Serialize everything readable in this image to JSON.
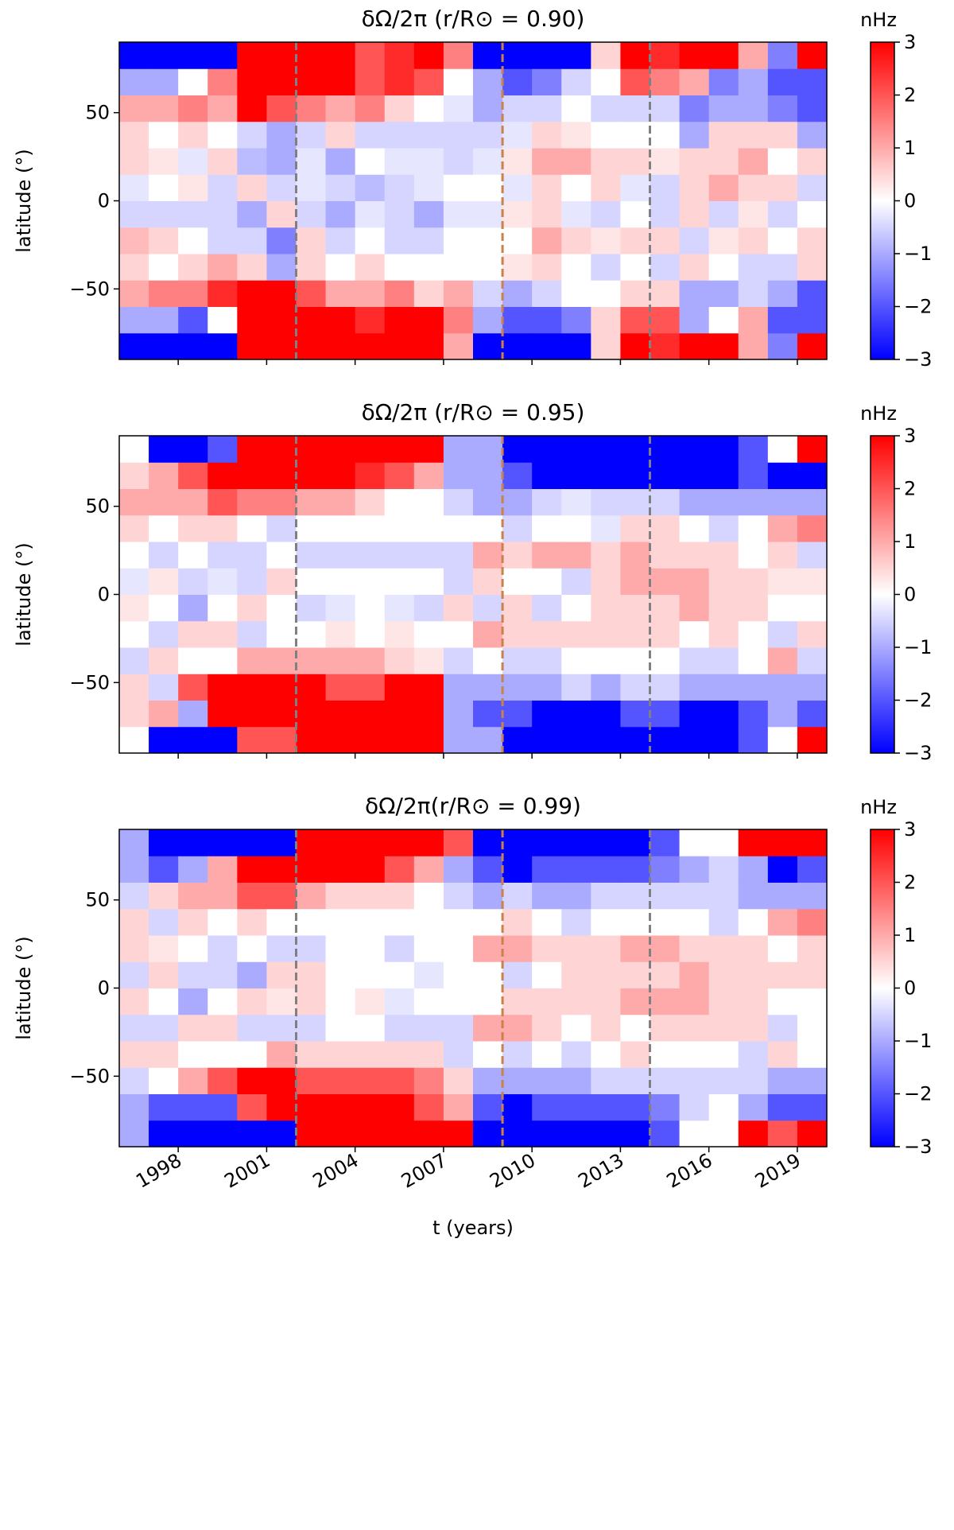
{
  "chart_data": [
    {
      "type": "heatmap",
      "title": "δΩ/2π (r/R⊙ = 0.90)",
      "ylabel": "latitude (°)",
      "colorbar_label": "nHz",
      "cmap": "bwr",
      "clim": [
        -3,
        3
      ],
      "cticks": [
        {
          "value": -3,
          "label": "−3"
        },
        {
          "value": -2,
          "label": "−2"
        },
        {
          "value": -1,
          "label": "−1"
        },
        0,
        1,
        2,
        3
      ],
      "xbins": [
        1996,
        1997,
        1998,
        1999,
        2000,
        2001,
        2002,
        2003,
        2004,
        2005,
        2006,
        2007,
        2008,
        2009,
        2010,
        2011,
        2012,
        2013,
        2014,
        2015,
        2016,
        2017,
        2018,
        2019,
        2020
      ],
      "ybins": [
        -90,
        -75,
        -60,
        -45,
        -30,
        -15,
        0,
        15,
        30,
        45,
        60,
        75,
        90
      ],
      "xlim": [
        1996,
        2020
      ],
      "ylim": [
        -90,
        90
      ],
      "xticks": [
        1998,
        2001,
        2004,
        2007,
        2010,
        2013,
        2016,
        2019
      ],
      "show_xtick_labels": false,
      "yticks": [
        {
          "value": -50,
          "label": "−50"
        },
        0,
        50
      ],
      "vlines": [
        {
          "x": 2002,
          "color": "#808080"
        },
        {
          "x": 2009,
          "color": "#c8824a"
        },
        {
          "x": 2014,
          "color": "#808080"
        }
      ],
      "values": [
        [
          -3,
          -1,
          1,
          0.5,
          0.8,
          -0.5,
          -0.3,
          0.5,
          0.5,
          1,
          -1,
          -3
        ],
        [
          -3,
          -1,
          1.5,
          0,
          0.5,
          -0.5,
          0,
          0.3,
          0,
          1,
          -1,
          -3
        ],
        [
          -3,
          -2,
          1.5,
          0.5,
          0,
          -0.5,
          0.3,
          -0.3,
          0.5,
          1.5,
          0,
          -3
        ],
        [
          -3,
          0,
          2.5,
          1,
          -0.5,
          -0.5,
          -0.5,
          0.5,
          0,
          1,
          1.5,
          -3
        ],
        [
          3,
          3,
          3,
          0.5,
          -0.5,
          -1,
          0.5,
          -0.8,
          -0.5,
          3,
          3,
          3
        ],
        [
          3,
          3,
          3,
          -1,
          -1.5,
          0.5,
          -0.5,
          -1,
          -1,
          2,
          3,
          3
        ],
        [
          3,
          3,
          2,
          0.5,
          0.5,
          -0.5,
          -0.3,
          -0.3,
          -0.5,
          1.5,
          3,
          3
        ],
        [
          3,
          3,
          1,
          0,
          -0.5,
          -1,
          -0.5,
          -1,
          0.5,
          1,
          3,
          3
        ],
        [
          3,
          2.5,
          1,
          0.5,
          0,
          -0.3,
          -0.8,
          0,
          -0.5,
          1.5,
          2,
          2
        ],
        [
          3,
          3,
          1.5,
          0,
          -0.5,
          -0.5,
          -0.5,
          -0.3,
          -0.5,
          0.5,
          2.5,
          2.5
        ],
        [
          3,
          3,
          0.5,
          0,
          -0.5,
          -1,
          -0.3,
          -0.3,
          -0.5,
          0,
          2,
          3
        ],
        [
          1,
          1.5,
          1,
          0,
          0,
          -0.3,
          0,
          -0.5,
          -0.5,
          -0.3,
          0,
          1.5
        ],
        [
          -3,
          -1,
          -0.5,
          0,
          0,
          -0.3,
          0,
          -0.3,
          -0.5,
          -1,
          -1,
          -3
        ],
        [
          -3,
          -2,
          -1,
          0.3,
          0,
          0.3,
          -0.3,
          0.3,
          -0.3,
          -0.5,
          -2,
          -3
        ],
        [
          -3,
          -2,
          -0.5,
          0.5,
          1,
          0.5,
          0.5,
          1,
          0.5,
          -0.5,
          -1.5,
          -3
        ],
        [
          -3,
          -1.5,
          0,
          0,
          0.5,
          -0.3,
          0,
          1,
          0.3,
          0,
          -0.5,
          -3
        ],
        [
          0.5,
          0.5,
          0,
          -0.5,
          0.3,
          -0.5,
          0.5,
          0.5,
          0,
          -0.5,
          0,
          0.5
        ],
        [
          3,
          2,
          0.5,
          0,
          0.5,
          0,
          -0.3,
          0.5,
          0,
          -0.5,
          2,
          3
        ],
        [
          2.5,
          2,
          0.5,
          -0.5,
          0.5,
          -0.5,
          -0.5,
          0.3,
          0,
          -0.5,
          1.5,
          2.5
        ],
        [
          3,
          -1,
          -1,
          0.5,
          -0.5,
          0.5,
          0.5,
          0.5,
          -1,
          -1.5,
          1,
          3
        ],
        [
          3,
          0,
          -1,
          0,
          0.3,
          -0.5,
          1,
          0.5,
          0.5,
          -1,
          -1.5,
          3
        ],
        [
          1,
          1,
          -0.5,
          -0.5,
          0.5,
          0.3,
          0.5,
          1,
          0.5,
          -1,
          -1,
          1
        ],
        [
          -1.5,
          -2,
          -1,
          -0.5,
          0,
          -0.5,
          0.5,
          0,
          0.5,
          -1.5,
          -2,
          -1.5
        ],
        [
          3,
          -2,
          -2,
          0.5,
          0.5,
          0,
          -0.5,
          0.5,
          -1,
          -2,
          -2,
          3
        ]
      ]
    },
    {
      "type": "heatmap",
      "title": "δΩ/2π (r/R⊙ = 0.95)",
      "ylabel": "latitude (°)",
      "colorbar_label": "nHz",
      "cmap": "bwr",
      "clim": [
        -3,
        3
      ],
      "cticks": [
        {
          "value": -3,
          "label": "−3"
        },
        {
          "value": -2,
          "label": "−2"
        },
        {
          "value": -1,
          "label": "−1"
        },
        0,
        1,
        2,
        3
      ],
      "xbins": [
        1996,
        1997,
        1998,
        1999,
        2000,
        2001,
        2002,
        2003,
        2004,
        2005,
        2006,
        2007,
        2008,
        2009,
        2010,
        2011,
        2012,
        2013,
        2014,
        2015,
        2016,
        2017,
        2018,
        2019,
        2020
      ],
      "ybins": [
        -90,
        -75,
        -60,
        -45,
        -30,
        -15,
        0,
        15,
        30,
        45,
        60,
        75,
        90
      ],
      "xlim": [
        1996,
        2020
      ],
      "ylim": [
        -90,
        90
      ],
      "xticks": [
        1998,
        2001,
        2004,
        2007,
        2010,
        2013,
        2016,
        2019
      ],
      "show_xtick_labels": false,
      "yticks": [
        {
          "value": -50,
          "label": "−50"
        },
        0,
        50
      ],
      "vlines": [
        {
          "x": 2002,
          "color": "#808080"
        },
        {
          "x": 2009,
          "color": "#c8824a"
        },
        {
          "x": 2014,
          "color": "#808080"
        }
      ],
      "values": [
        [
          0,
          0.5,
          0.5,
          -0.5,
          0,
          0.3,
          -0.3,
          0,
          0.5,
          1,
          0.5,
          0
        ],
        [
          -3,
          1,
          -0.5,
          0.5,
          -0.5,
          0,
          0.3,
          -0.5,
          0,
          1,
          1,
          -3
        ],
        [
          -3,
          -1,
          2,
          0,
          0.5,
          -1,
          -0.5,
          0,
          0.5,
          1,
          2,
          -3
        ],
        [
          -3,
          3,
          3,
          0,
          0.5,
          0,
          -0.3,
          -0.5,
          0.5,
          2,
          3,
          -2
        ],
        [
          2,
          3,
          3,
          1,
          -0.5,
          0.5,
          -0.5,
          -0.5,
          0,
          1.5,
          3,
          3
        ],
        [
          2,
          3,
          3,
          1,
          0,
          0,
          0.5,
          0,
          -0.5,
          1.5,
          3,
          3
        ],
        [
          3,
          3,
          3,
          1,
          0,
          -0.5,
          0,
          -0.5,
          0,
          1,
          3,
          3
        ],
        [
          3,
          3,
          2,
          1,
          0.3,
          -0.3,
          0,
          -0.5,
          0,
          1,
          3,
          3
        ],
        [
          3,
          3,
          2,
          1,
          0,
          0,
          0,
          -0.5,
          0,
          0.5,
          2.5,
          3
        ],
        [
          3,
          3,
          3,
          0.5,
          0.3,
          -0.3,
          0,
          -0.5,
          0,
          0,
          2,
          3
        ],
        [
          3,
          3,
          3,
          0.3,
          0,
          -0.5,
          0,
          -0.5,
          0,
          0,
          1,
          3
        ],
        [
          -1,
          -1,
          -1,
          -0.5,
          0,
          0.5,
          -0.5,
          -0.5,
          0,
          -0.5,
          -1,
          -1
        ],
        [
          -1,
          -2,
          -1,
          0,
          1,
          -0.5,
          0.5,
          1,
          0,
          -1,
          -1,
          -1
        ],
        [
          -3,
          -2,
          -1,
          -0.5,
          0.5,
          0.5,
          0,
          0.5,
          -0.5,
          -1,
          -2,
          -3
        ],
        [
          -3,
          -3,
          -1,
          -0.5,
          0.5,
          -0.5,
          0,
          1,
          0,
          -0.5,
          -3,
          -3
        ],
        [
          -3,
          -3,
          -0.5,
          0,
          0.5,
          0,
          -0.5,
          1,
          0,
          -0.3,
          -3,
          -3
        ],
        [
          -3,
          -3,
          -1,
          0,
          0.5,
          0.5,
          0.5,
          0.5,
          -0.3,
          -0.5,
          -3,
          -3
        ],
        [
          -3,
          -2,
          -0.5,
          0,
          0.5,
          0.5,
          1,
          1,
          0.5,
          -0.5,
          -3,
          -3
        ],
        [
          -3,
          -2,
          -0.5,
          0,
          0.5,
          0.5,
          1,
          0.5,
          0.5,
          -0.5,
          -3,
          -3
        ],
        [
          -3,
          -3,
          -1,
          -0.5,
          0,
          1,
          1,
          0.5,
          0,
          -1,
          -3,
          -3
        ],
        [
          -3,
          -3,
          -1,
          -0.5,
          0.5,
          0.5,
          0.5,
          0.5,
          -0.5,
          -1,
          -3,
          -3
        ],
        [
          -2,
          -2,
          -1,
          0,
          0,
          0.5,
          0.5,
          0,
          0,
          -1,
          -2,
          -2
        ],
        [
          0,
          -1,
          -1,
          1,
          -0.5,
          0,
          0.3,
          0.5,
          1,
          -1,
          -3,
          0
        ],
        [
          3,
          -2,
          -1,
          -0.5,
          0.5,
          0,
          0.3,
          -0.5,
          1.5,
          -1,
          -3,
          3
        ]
      ]
    },
    {
      "type": "heatmap",
      "title": "δΩ/2π(r/R⊙ = 0.99)",
      "ylabel": "latitude (°)",
      "xlabel": "t (years)",
      "colorbar_label": "nHz",
      "cmap": "bwr",
      "clim": [
        -3,
        3
      ],
      "cticks": [
        {
          "value": -3,
          "label": "−3"
        },
        {
          "value": -2,
          "label": "−2"
        },
        {
          "value": -1,
          "label": "−1"
        },
        0,
        1,
        2,
        3
      ],
      "xbins": [
        1996,
        1997,
        1998,
        1999,
        2000,
        2001,
        2002,
        2003,
        2004,
        2005,
        2006,
        2007,
        2008,
        2009,
        2010,
        2011,
        2012,
        2013,
        2014,
        2015,
        2016,
        2017,
        2018,
        2019,
        2020
      ],
      "ybins": [
        -90,
        -75,
        -60,
        -45,
        -30,
        -15,
        0,
        15,
        30,
        45,
        60,
        75,
        90
      ],
      "xlim": [
        1996,
        2020
      ],
      "ylim": [
        -90,
        90
      ],
      "xticks": [
        1998,
        2001,
        2004,
        2007,
        2010,
        2013,
        2016,
        2019
      ],
      "show_xtick_labels": true,
      "yticks": [
        {
          "value": -50,
          "label": "−50"
        },
        0,
        50
      ],
      "vlines": [
        {
          "x": 2002,
          "color": "#808080"
        },
        {
          "x": 2009,
          "color": "#c8824a"
        },
        {
          "x": 2014,
          "color": "#808080"
        }
      ],
      "values": [
        [
          -1,
          -1,
          -0.5,
          0.5,
          -0.5,
          0.5,
          -0.5,
          0.5,
          0.5,
          -0.5,
          -1,
          -1
        ],
        [
          -3,
          -2,
          0,
          0.5,
          -0.5,
          0,
          0.5,
          0.3,
          -0.5,
          0.5,
          -2,
          -3
        ],
        [
          -3,
          -2,
          1,
          0,
          0.5,
          -1,
          -0.5,
          0,
          0.5,
          1,
          -1,
          -3
        ],
        [
          -3,
          -2,
          2,
          0,
          0.5,
          0,
          -0.5,
          -0.5,
          0,
          1,
          1,
          -3
        ],
        [
          -3,
          2,
          3,
          0,
          -0.5,
          0.5,
          -1,
          0,
          0.5,
          2,
          3,
          -3
        ],
        [
          -3,
          3,
          3,
          1,
          -0.5,
          0.3,
          0.5,
          -0.5,
          0,
          2,
          3,
          -3
        ],
        [
          3,
          3,
          2,
          0.5,
          -0.5,
          0.5,
          0.5,
          -0.5,
          0,
          1,
          3,
          3
        ],
        [
          3,
          3,
          2,
          0.5,
          0,
          0,
          0,
          0,
          0,
          0.5,
          3,
          3
        ],
        [
          3,
          3,
          2,
          0.5,
          0,
          0.3,
          0,
          0,
          0,
          0.5,
          3,
          3
        ],
        [
          3,
          3,
          2,
          0.5,
          -0.5,
          -0.3,
          0,
          -0.5,
          0,
          0.5,
          2,
          3
        ],
        [
          3,
          2,
          1.5,
          0.5,
          -0.5,
          0,
          -0.3,
          0,
          0,
          0,
          1,
          3
        ],
        [
          3,
          1,
          0.5,
          -0.5,
          -0.5,
          0,
          0,
          0,
          0,
          -0.5,
          -1,
          2
        ],
        [
          -3,
          -2,
          -1,
          0,
          1,
          0,
          0,
          1,
          0,
          -1,
          -2,
          -3
        ],
        [
          -3,
          -3,
          -1,
          -0.5,
          1,
          0.5,
          -0.5,
          1,
          0.5,
          -0.5,
          -3,
          -3
        ],
        [
          -3,
          -2,
          -1,
          0,
          0.5,
          0.5,
          0,
          0.5,
          0,
          -1,
          -2,
          -3
        ],
        [
          -3,
          -2,
          -1,
          -0.5,
          0,
          0.5,
          0.5,
          0.5,
          -0.5,
          -1,
          -2,
          -3
        ],
        [
          -3,
          -2,
          -0.5,
          0,
          0.5,
          0.5,
          0.5,
          0.5,
          0,
          -0.5,
          -2,
          -3
        ],
        [
          -3,
          -2,
          -0.5,
          0.5,
          0,
          1,
          0.5,
          1,
          0,
          -0.5,
          -2,
          -3
        ],
        [
          -2,
          -1.5,
          -0.5,
          0,
          0.5,
          1,
          0.5,
          1,
          0,
          -0.5,
          -1.5,
          -2
        ],
        [
          0,
          -0.5,
          -0.5,
          0,
          0.5,
          1,
          1,
          0.5,
          0,
          -0.5,
          -1,
          0
        ],
        [
          0,
          0,
          -0.5,
          0,
          0.5,
          0.5,
          0.5,
          0.5,
          -0.5,
          -0.5,
          -0.5,
          0
        ],
        [
          3,
          -1,
          -0.5,
          -0.5,
          0.5,
          0.5,
          0.5,
          0.5,
          0,
          -1,
          -1,
          3
        ],
        [
          2,
          -2,
          -1,
          0.5,
          -0.5,
          0,
          0.5,
          0,
          1,
          -1,
          -3,
          3
        ],
        [
          3,
          -2,
          -1,
          0,
          0,
          0,
          0.5,
          0.5,
          1.5,
          -1,
          -2,
          3
        ]
      ]
    }
  ]
}
